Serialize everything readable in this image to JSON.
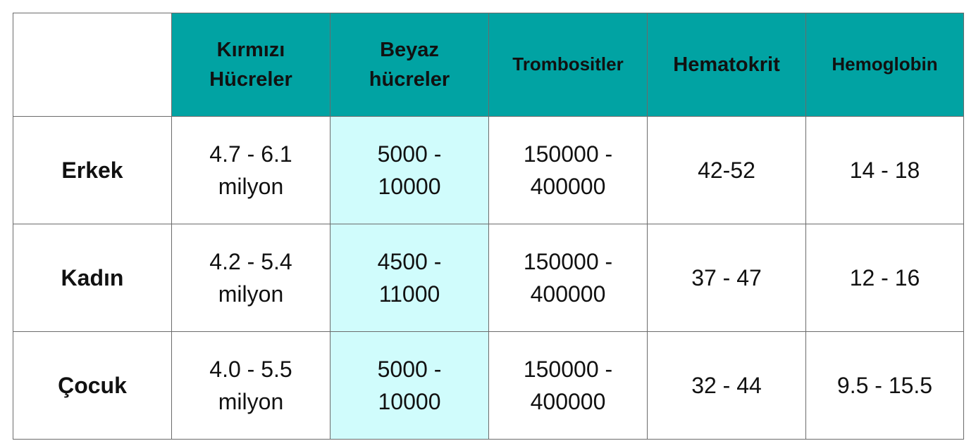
{
  "table": {
    "headers": [
      "",
      "Kırmızı Hücreler",
      "Beyaz hücreler",
      "Trombositler",
      "Hematokrit",
      "Hemoglobin"
    ],
    "rows": [
      {
        "label": "Erkek",
        "cells": [
          "4.7 - 6.1 milyon",
          "5000 - 10000",
          "150000 - 400000",
          "42-52",
          "14 - 18"
        ]
      },
      {
        "label": "Kadın",
        "cells": [
          "4.2 - 5.4 milyon",
          "4500 - 11000",
          "150000 - 400000",
          "37 - 47",
          "12 - 16"
        ]
      },
      {
        "label": "Çocuk",
        "cells": [
          "4.0 - 5.5 milyon",
          "5000 - 10000",
          "150000 - 400000",
          "32 - 44",
          "9.5 - 15.5"
        ]
      }
    ],
    "colors": {
      "header_bg": "#01a3a3",
      "highlight_column_bg": "#d0fcfc",
      "border": "#6b6b6b"
    }
  }
}
